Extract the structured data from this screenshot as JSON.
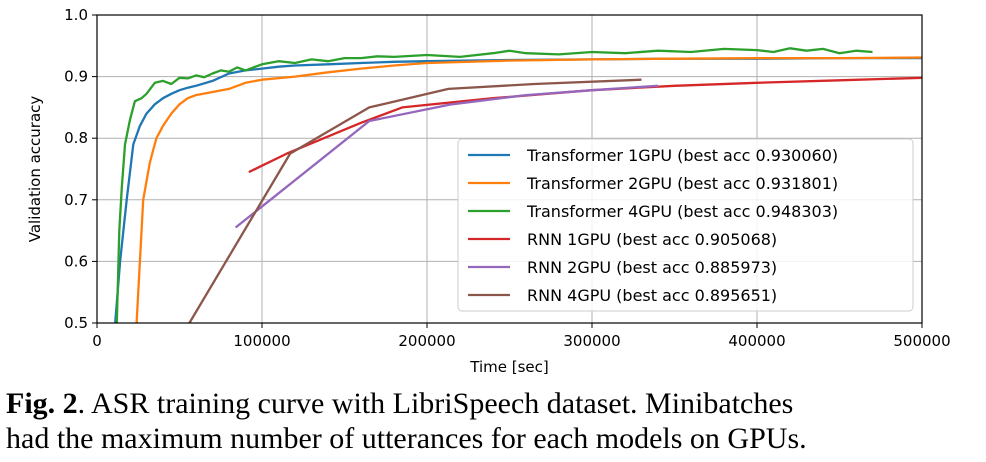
{
  "chart_data": {
    "type": "line",
    "xlabel": "Time [sec]",
    "ylabel": "Validation accuracy",
    "xlim": [
      0,
      500000
    ],
    "ylim": [
      0.5,
      1.0
    ],
    "xticks": [
      0,
      100000,
      200000,
      300000,
      400000,
      500000
    ],
    "yticks": [
      0.5,
      0.6,
      0.7,
      0.8,
      0.9,
      1.0
    ],
    "grid": true,
    "legend_position": "lower-right",
    "series": [
      {
        "name": "Transformer 1GPU (best acc 0.930060)",
        "color": "#1f77b4",
        "x": [
          11000,
          14000,
          18000,
          22000,
          26000,
          30000,
          35000,
          40000,
          45000,
          50000,
          55000,
          60000,
          70000,
          80000,
          90000,
          100000,
          110000,
          120000,
          140000,
          160000,
          180000,
          200000,
          250000,
          300000,
          350000,
          400000,
          450000,
          500000
        ],
        "y": [
          0.5,
          0.6,
          0.7,
          0.79,
          0.82,
          0.84,
          0.855,
          0.865,
          0.872,
          0.878,
          0.882,
          0.885,
          0.893,
          0.905,
          0.91,
          0.913,
          0.916,
          0.918,
          0.92,
          0.922,
          0.924,
          0.925,
          0.927,
          0.928,
          0.929,
          0.929,
          0.93,
          0.93
        ]
      },
      {
        "name": "Transformer 2GPU (best acc 0.931801)",
        "color": "#ff7f0e",
        "x": [
          24000,
          26000,
          28000,
          32000,
          36000,
          40000,
          45000,
          50000,
          55000,
          60000,
          70000,
          80000,
          90000,
          100000,
          120000,
          140000,
          160000,
          180000,
          200000,
          250000,
          300000,
          350000,
          400000,
          450000,
          500000
        ],
        "y": [
          0.5,
          0.6,
          0.7,
          0.76,
          0.8,
          0.82,
          0.84,
          0.855,
          0.865,
          0.87,
          0.875,
          0.88,
          0.89,
          0.895,
          0.9,
          0.907,
          0.913,
          0.918,
          0.922,
          0.926,
          0.928,
          0.929,
          0.93,
          0.93,
          0.931
        ]
      },
      {
        "name": "Transformer 4GPU (best acc 0.948303)",
        "color": "#2ca02c",
        "x": [
          12000,
          13500,
          15000,
          17000,
          20000,
          23000,
          27000,
          30000,
          35000,
          40000,
          45000,
          50000,
          55000,
          60000,
          65000,
          70000,
          75000,
          80000,
          85000,
          90000,
          100000,
          110000,
          120000,
          130000,
          140000,
          150000,
          160000,
          170000,
          180000,
          200000,
          220000,
          240000,
          250000,
          260000,
          280000,
          300000,
          320000,
          340000,
          360000,
          380000,
          400000,
          410000,
          420000,
          430000,
          440000,
          450000,
          460000,
          470000
        ],
        "y": [
          0.5,
          0.65,
          0.72,
          0.79,
          0.83,
          0.86,
          0.865,
          0.872,
          0.89,
          0.893,
          0.888,
          0.898,
          0.897,
          0.902,
          0.899,
          0.905,
          0.91,
          0.908,
          0.915,
          0.91,
          0.92,
          0.925,
          0.922,
          0.928,
          0.925,
          0.93,
          0.93,
          0.933,
          0.932,
          0.935,
          0.932,
          0.938,
          0.942,
          0.938,
          0.936,
          0.94,
          0.938,
          0.942,
          0.94,
          0.945,
          0.943,
          0.94,
          0.946,
          0.942,
          0.945,
          0.938,
          0.942,
          0.94
        ]
      },
      {
        "name": "RNN 1GPU (best acc 0.905068)",
        "color": "#d62728",
        "x": [
          92000,
          115000,
          160000,
          185000,
          240000,
          300000,
          350000,
          400000,
          450000,
          500000
        ],
        "y": [
          0.745,
          0.775,
          0.825,
          0.85,
          0.865,
          0.878,
          0.885,
          0.89,
          0.894,
          0.898
        ]
      },
      {
        "name": "RNN 2GPU (best acc 0.885973)",
        "color": "#9467bd",
        "x": [
          84000,
          165000,
          215000,
          260000,
          300000,
          340000
        ],
        "y": [
          0.655,
          0.828,
          0.855,
          0.87,
          0.878,
          0.885
        ]
      },
      {
        "name": "RNN 4GPU (best acc 0.895651)",
        "color": "#8c564b",
        "x": [
          56000,
          117000,
          165000,
          213000,
          265000,
          330000
        ],
        "y": [
          0.5,
          0.775,
          0.85,
          0.88,
          0.888,
          0.895
        ]
      }
    ]
  },
  "caption": {
    "fig_label": "Fig. 2",
    "line1": ".  ASR training curve with LibriSpeech dataset.  Minibatches",
    "line2": "had the maximum number of utterances for each models on GPUs."
  }
}
